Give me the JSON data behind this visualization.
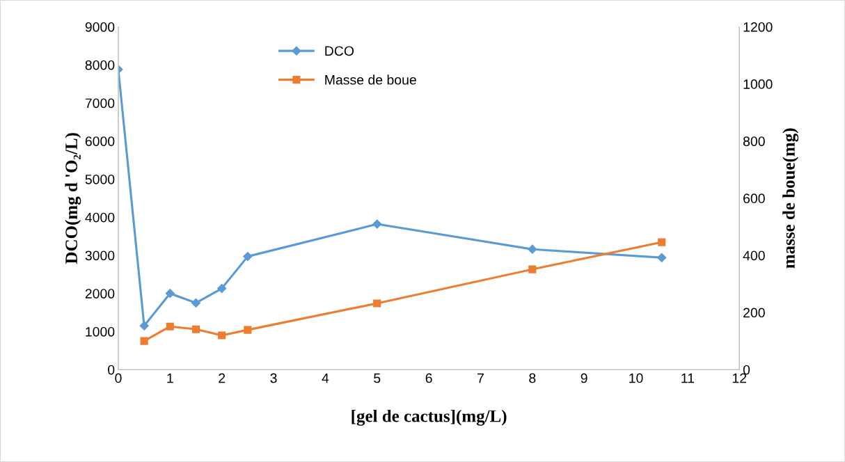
{
  "chart_data": {
    "type": "line",
    "xlabel": "[gel de cactus](mg/L)",
    "ylabel": "DCO(mg d 'O₂/L)",
    "y2label": "masse de boue(mg)",
    "xlim": [
      0,
      12
    ],
    "xticks": [
      0,
      1,
      2,
      3,
      4,
      5,
      6,
      7,
      8,
      9,
      10,
      11,
      12
    ],
    "ylim": [
      0,
      9000
    ],
    "yticks": [
      0,
      1000,
      2000,
      3000,
      4000,
      5000,
      6000,
      7000,
      8000,
      9000
    ],
    "y2lim": [
      0,
      1200
    ],
    "y2ticks": [
      0,
      200,
      400,
      600,
      800,
      1000,
      1200
    ],
    "grid": false,
    "legend": "top",
    "line_style": "solid",
    "series": [
      {
        "name": "DCO",
        "color": "#5b9bd5",
        "marker": "diamond",
        "x": [
          0,
          0.5,
          1,
          1.5,
          2,
          2.5,
          5,
          8,
          10.5
        ],
        "values": [
          7880,
          1150,
          2000,
          1750,
          2130,
          2970,
          3820,
          3160,
          2940
        ]
      },
      {
        "name": "Masse de boue",
        "color": "#ed7d31",
        "marker": "square",
        "axis": "y2",
        "x": [
          0.5,
          1,
          1.5,
          2,
          2.5,
          5,
          8,
          10.5
        ],
        "values": [
          100,
          151,
          141,
          120,
          139,
          232,
          351,
          446
        ]
      }
    ]
  }
}
